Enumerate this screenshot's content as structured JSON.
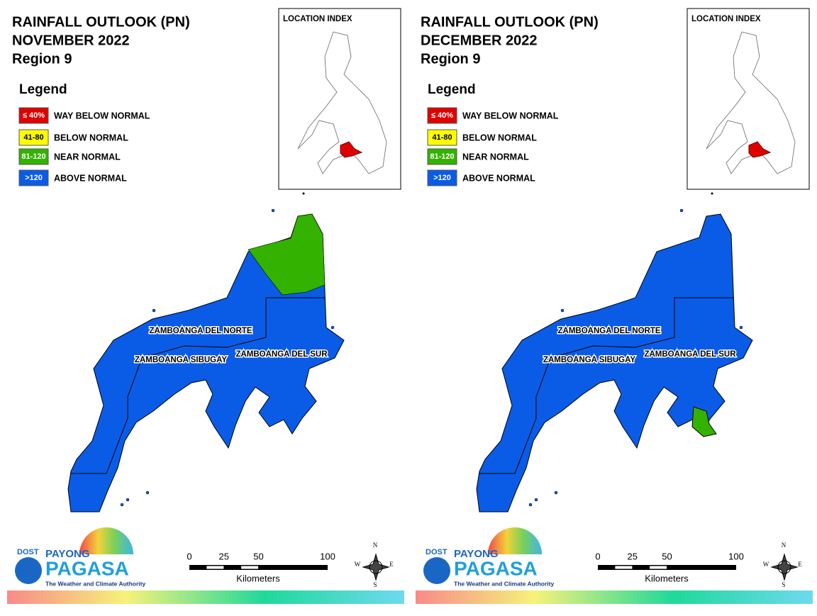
{
  "panels": [
    {
      "title_lines": [
        "RAINFALL OUTLOOK (PN)",
        "NOVEMBER 2022",
        "Region 9"
      ],
      "legend": {
        "title": "Legend",
        "items": [
          {
            "label": "≤ 40%",
            "description": "WAY BELOW NORMAL",
            "color": "#e00000"
          },
          {
            "label": "41-80",
            "description": "BELOW NORMAL",
            "color": "#ffff00"
          },
          {
            "label": "81-120",
            "description": "NEAR NORMAL",
            "color": "#33b200"
          },
          {
            "label": ">120",
            "description": "ABOVE NORMAL",
            "color": "#0a5ce6"
          }
        ]
      },
      "location_index": "LOCATION INDEX",
      "provinces": [
        "ZAMBOANGA DEL NORTE",
        "ZAMBOANGA SIBUGAY",
        "ZAMBOANGA DEL SUR"
      ],
      "scale_bar": {
        "ticks": [
          0,
          25,
          50,
          100
        ],
        "unit": "Kilometers"
      },
      "compass": [
        "N",
        "E",
        "S",
        "W"
      ],
      "logo": {
        "agency": "DOST",
        "brand": "PAYONG",
        "name": "PAGASA",
        "tagline": "The Weather and Climate Authority"
      }
    },
    {
      "title_lines": [
        "RAINFALL OUTLOOK (PN)",
        "DECEMBER 2022",
        "Region 9"
      ],
      "legend": {
        "title": "Legend",
        "items": [
          {
            "label": "≤ 40%",
            "description": "WAY BELOW NORMAL",
            "color": "#e00000"
          },
          {
            "label": "41-80",
            "description": "BELOW NORMAL",
            "color": "#ffff00"
          },
          {
            "label": "81-120",
            "description": "NEAR NORMAL",
            "color": "#33b200"
          },
          {
            "label": ">120",
            "description": "ABOVE NORMAL",
            "color": "#0a5ce6"
          }
        ]
      },
      "location_index": "LOCATION INDEX",
      "provinces": [
        "ZAMBOANGA DEL NORTE",
        "ZAMBOANGA SIBUGAY",
        "ZAMBOANGA DEL SUR"
      ],
      "scale_bar": {
        "ticks": [
          0,
          25,
          50,
          100
        ],
        "unit": "Kilometers"
      },
      "compass": [
        "N",
        "E",
        "S",
        "W"
      ],
      "logo": {
        "agency": "DOST",
        "brand": "PAYONG",
        "name": "PAGASA",
        "tagline": "The Weather and Climate Authority"
      }
    }
  ]
}
